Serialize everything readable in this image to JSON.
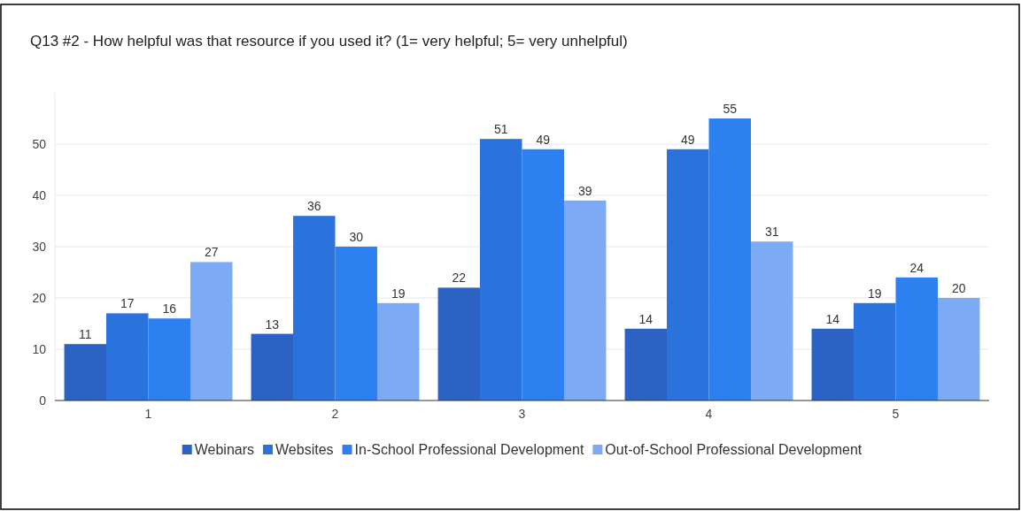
{
  "chart_data": {
    "type": "bar",
    "title": "Q13 #2 - How helpful was that resource if you used it? (1= very helpful; 5= very unhelpful)",
    "categories": [
      "1",
      "2",
      "3",
      "4",
      "5"
    ],
    "series": [
      {
        "name": "Webinars",
        "color": "#2b62c4",
        "values": [
          11,
          13,
          22,
          14,
          14
        ]
      },
      {
        "name": "Websites",
        "color": "#2a72dc",
        "values": [
          17,
          36,
          51,
          49,
          19
        ]
      },
      {
        "name": "In-School Professional Development",
        "color": "#2c80f0",
        "values": [
          16,
          30,
          49,
          55,
          24
        ]
      },
      {
        "name": "Out-of-School Professional Development",
        "color": "#7caaf4",
        "values": [
          27,
          19,
          39,
          31,
          20
        ]
      }
    ],
    "ylim": [
      0,
      60
    ],
    "yticks": [
      0,
      10,
      20,
      30,
      40,
      50
    ],
    "grid": "y",
    "legend": "bottom",
    "data_labels": true
  }
}
